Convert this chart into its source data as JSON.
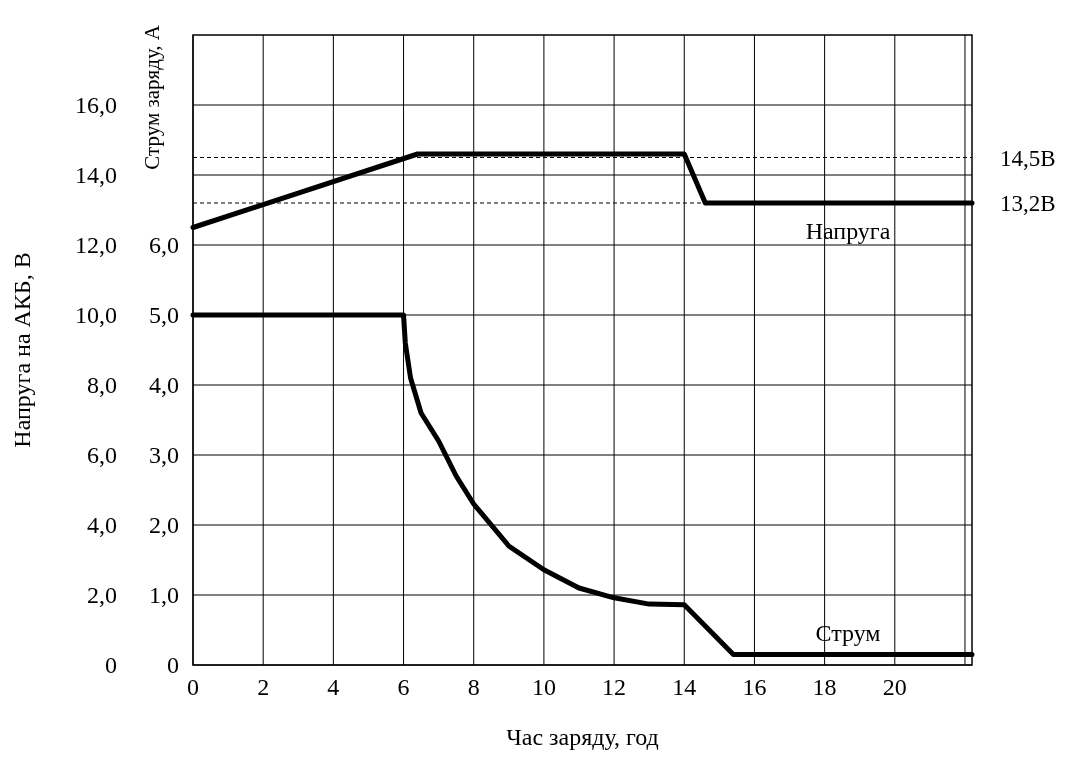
{
  "chart_data": {
    "type": "line",
    "xlabel": "Час заряду, год",
    "ylabel": "Напруга на АКБ, В",
    "y2label": "Струм заряду, А",
    "xlim": [
      0,
      22.2
    ],
    "xticks": [
      0,
      2,
      4,
      6,
      8,
      10,
      12,
      14,
      16,
      18,
      20,
      {
        "value": 22,
        "label": null
      }
    ],
    "ylim": [
      0,
      18
    ],
    "yticks": [
      0,
      {
        "value": 2,
        "label": "2,0"
      },
      {
        "value": 4,
        "label": "4,0"
      },
      {
        "value": 6,
        "label": "6,0"
      },
      {
        "value": 8,
        "label": "8,0"
      },
      {
        "value": 10,
        "label": "10,0"
      },
      {
        "value": 12,
        "label": "12,0"
      },
      {
        "value": 14,
        "label": "14,0"
      },
      {
        "value": 16,
        "label": "16,0"
      }
    ],
    "y2lim": [
      0,
      9
    ],
    "y2ticks": [
      0,
      {
        "value": 1,
        "label": "1,0"
      },
      {
        "value": 2,
        "label": "2,0"
      },
      {
        "value": 3,
        "label": "3,0"
      },
      {
        "value": 4,
        "label": "4,0"
      },
      {
        "value": 5,
        "label": "5,0"
      },
      {
        "value": 6,
        "label": "6,0"
      }
    ],
    "grid": true,
    "marker": "none",
    "line_style": "solid",
    "series": [
      {
        "name": "Напруга",
        "color": "#000000",
        "x": [
          0,
          6.4,
          14,
          14.6,
          22.2
        ],
        "values": [
          12.5,
          14.6,
          14.6,
          13.2,
          13.2
        ]
      },
      {
        "name": "Струм",
        "color": "#000000",
        "axis": "y2",
        "x": [
          0,
          6,
          6.05,
          6.2,
          6.5,
          7,
          7.5,
          8,
          9,
          10,
          11,
          12,
          13,
          14,
          15.4,
          22.2
        ],
        "values": [
          5,
          5,
          4.6,
          4.1,
          3.6,
          3.2,
          2.7,
          2.3,
          1.7,
          1.36,
          1.1,
          0.96,
          0.87,
          0.86,
          0.15,
          0.15
        ]
      }
    ],
    "ref_lines": [
      {
        "axis": "y",
        "value": 14.5,
        "label": "14,5В",
        "line_style": "dashed",
        "color": "#000000"
      },
      {
        "axis": "y",
        "value": 13.2,
        "label": "13,2В",
        "line_style": "dashed",
        "color": "#000000"
      }
    ]
  }
}
